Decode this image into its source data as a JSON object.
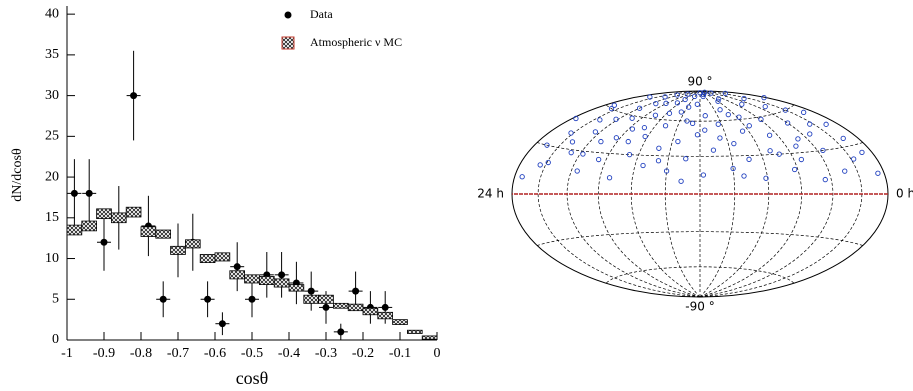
{
  "chart_data": [
    {
      "type": "errorbar",
      "x_label": "cosθ",
      "y_label": "dN/dcosθ",
      "xlim": [
        -1,
        0
      ],
      "ylim": [
        0,
        41
      ],
      "xticks": [
        -1,
        -0.9,
        -0.8,
        -0.7,
        -0.6,
        -0.5,
        -0.4,
        -0.3,
        -0.2,
        -0.1,
        0
      ],
      "yticks": [
        0,
        5,
        10,
        15,
        20,
        25,
        30,
        35,
        40
      ],
      "legend": "upper right",
      "series": [
        {
          "name": "Data",
          "color": "#000000",
          "kind": "points",
          "x": [
            -0.98,
            -0.94,
            -0.9,
            -0.86,
            -0.82,
            -0.78,
            -0.74,
            -0.7,
            -0.66,
            -0.62,
            -0.58,
            -0.54,
            -0.5,
            -0.46,
            -0.42,
            -0.38,
            -0.34,
            -0.3,
            -0.26,
            -0.22,
            -0.18,
            -0.14
          ],
          "values": [
            18,
            18,
            12,
            15,
            30,
            14,
            5,
            11,
            12,
            5,
            2,
            9,
            5,
            8,
            8,
            7,
            6,
            4,
            1,
            6,
            4,
            4
          ],
          "errors": [
            4.2,
            4.2,
            3.5,
            3.9,
            5.5,
            3.7,
            2.2,
            3.3,
            3.5,
            2.2,
            1.4,
            3,
            2.2,
            2.8,
            2.8,
            2.6,
            2.4,
            2,
            1,
            2.4,
            2,
            2
          ]
        },
        {
          "name": "Atmospheric ν MC",
          "color": "#000000",
          "kind": "boxes",
          "bins": [
            -1,
            -0.96,
            -0.92,
            -0.88,
            -0.84,
            -0.8,
            -0.76,
            -0.72,
            -0.68,
            -0.64,
            -0.6,
            -0.56,
            -0.52,
            -0.48,
            -0.44,
            -0.4,
            -0.36,
            -0.32,
            -0.28,
            -0.24,
            -0.2,
            -0.16,
            -0.12,
            -0.08,
            -0.04,
            0
          ],
          "values": [
            13.5,
            14,
            15.5,
            15,
            15.7,
            13.3,
            13,
            11,
            11.8,
            10,
            10.2,
            8,
            7.5,
            7.3,
            7,
            6.4,
            5,
            5,
            4.2,
            4,
            3.5,
            3,
            2.2,
            1,
            0.3
          ],
          "errors": [
            0.6,
            0.6,
            0.6,
            0.6,
            0.6,
            0.6,
            0.5,
            0.5,
            0.5,
            0.5,
            0.5,
            0.5,
            0.5,
            0.5,
            0.5,
            0.4,
            0.5,
            0.5,
            0.3,
            0.4,
            0.4,
            0.4,
            0.3,
            0.2,
            0.2
          ]
        }
      ]
    },
    {
      "type": "sky",
      "color": "#1f3fbf",
      "equator_color": "#b22222",
      "grid": true,
      "xlim": [
        24,
        0
      ],
      "ylim": [
        -90,
        90
      ],
      "xticks": [
        {
          "value": 24,
          "label": "24 h"
        },
        {
          "value": 0,
          "label": "0 h"
        }
      ],
      "yticks": [
        {
          "value": 90,
          "label": "90 °"
        },
        {
          "value": -90,
          "label": "-90 °"
        }
      ],
      "x": [
        0.5,
        1.2,
        0.9,
        1.8,
        2.3,
        2.9,
        3.1,
        3.6,
        4.0,
        4.4,
        4.7,
        5.1,
        5.5,
        5.9,
        6.2,
        6.6,
        7.0,
        7.3,
        7.8,
        8.1,
        8.5,
        8.9,
        9.2,
        9.6,
        10.0,
        10.3,
        10.7,
        11.1,
        11.4,
        11.8,
        12.2,
        12.5,
        12.9,
        13.3,
        13.6,
        14.0,
        14.4,
        14.8,
        15.1,
        15.5,
        15.9,
        16.2,
        16.6,
        17.0,
        17.4,
        17.7,
        18.1,
        18.5,
        18.9,
        19.2,
        19.6,
        20.0,
        20.4,
        20.7,
        21.1,
        21.5,
        21.9,
        22.2,
        22.6,
        23.0,
        23.4,
        23.7,
        0.2,
        1.5,
        2.6,
        4.2,
        6.0,
        8.0,
        9.8,
        12.0,
        14.2,
        16.4,
        18.6,
        20.5,
        22.8,
        3.4,
        5.3,
        7.6,
        9.4,
        11.6,
        13.1,
        15.7,
        17.2,
        19.4,
        21.3,
        23.2,
        0.8,
        2.0,
        6.8,
        10.5,
        12.7,
        14.6,
        16.8,
        18.3,
        20.2,
        22.4,
        1.0,
        8.7,
        13.8,
        19.8
      ],
      "y": [
        12,
        35,
        55,
        22,
        48,
        15,
        66,
        30,
        52,
        10,
        40,
        72,
        25,
        58,
        18,
        45,
        80,
        33,
        62,
        12,
        50,
        27,
        70,
        40,
        20,
        57,
        84,
        35,
        65,
        15,
        48,
        76,
        28,
        60,
        42,
        18,
        68,
        36,
        55,
        22,
        80,
        45,
        30,
        63,
        12,
        50,
        74,
        25,
        58,
        38,
        16,
        66,
        44,
        28,
        78,
        52,
        20,
        40,
        60,
        30,
        10,
        48,
        70,
        82,
        75,
        86,
        88,
        78,
        86,
        88,
        84,
        76,
        85,
        82,
        74,
        42,
        35,
        54,
        14,
        52,
        10,
        66,
        40,
        72,
        35,
        62,
        25,
        60,
        30,
        45,
        58,
        26,
        52,
        42,
        55,
        18,
        45,
        65,
        73,
        28
      ]
    }
  ]
}
